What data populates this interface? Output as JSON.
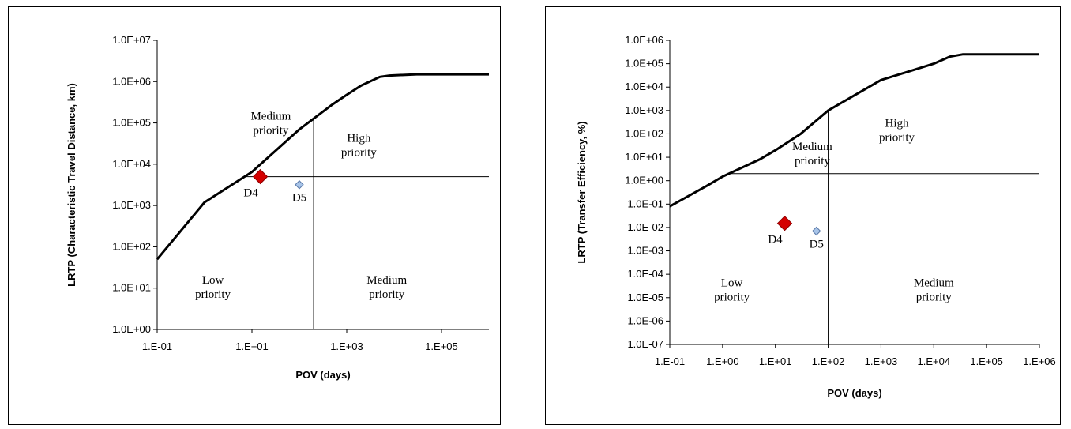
{
  "chart_data": [
    {
      "type": "scatter",
      "xlabel": "POV (days)",
      "ylabel": "LRTP (Characteristic Travel Distance, km)",
      "x_scale": "log",
      "y_scale": "log",
      "xlim": [
        0.1,
        1000000
      ],
      "ylim": [
        1,
        10000000
      ],
      "x_ticks": [
        0.1,
        10,
        1000,
        100000
      ],
      "x_tick_labels": [
        "1.E-01",
        "1.E+01",
        "1.E+03",
        "1.E+05"
      ],
      "y_ticks": [
        1,
        10,
        100,
        1000,
        10000,
        100000,
        1000000,
        10000000
      ],
      "y_tick_labels": [
        "1.0E+00",
        "1.0E+01",
        "1.0E+02",
        "1.0E+03",
        "1.0E+04",
        "1.0E+05",
        "1.0E+06",
        "1.0E+07"
      ],
      "grid": false,
      "curve": {
        "x": [
          0.1,
          1,
          10,
          100,
          500,
          1000,
          2000,
          5000,
          8000,
          30000,
          1000000
        ],
        "y": [
          50,
          1200,
          6500,
          70000,
          280000,
          480000,
          800000,
          1300000,
          1400000,
          1500000,
          1500000
        ]
      },
      "threshold_x": 200,
      "threshold_y": 5000,
      "points": [
        {
          "label": "D4",
          "x": 15,
          "y": 5000,
          "color": "#d40000",
          "size": "large",
          "label_pos": "below-left"
        },
        {
          "label": "D5",
          "x": 100,
          "y": 3200,
          "color": "#a8c4e8",
          "size": "small",
          "label_pos": "below"
        }
      ],
      "region_labels": [
        {
          "lines": [
            "Medium",
            "priority"
          ],
          "x": 25,
          "y": 120000
        },
        {
          "lines": [
            "High",
            "priority"
          ],
          "x": 1800,
          "y": 35000
        },
        {
          "lines": [
            "Low",
            "priority"
          ],
          "x": 1.5,
          "y": 13
        },
        {
          "lines": [
            "Medium",
            "priority"
          ],
          "x": 7000,
          "y": 13
        }
      ]
    },
    {
      "type": "scatter",
      "xlabel": "POV (days)",
      "ylabel": "LRTP (Transfer Efficiency, %)",
      "x_scale": "log",
      "y_scale": "log",
      "xlim": [
        0.1,
        1000000
      ],
      "ylim": [
        1e-07,
        1000000
      ],
      "x_ticks": [
        0.1,
        1,
        10,
        100,
        1000,
        10000,
        100000,
        1000000
      ],
      "x_tick_labels": [
        "1.E-01",
        "1.E+00",
        "1.E+01",
        "1.E+02",
        "1.E+03",
        "1.E+04",
        "1.E+05",
        "1.E+06"
      ],
      "y_ticks": [
        1e-07,
        1e-06,
        1e-05,
        0.0001,
        0.001,
        0.01,
        0.1,
        1,
        10,
        100,
        1000,
        10000,
        100000,
        1000000
      ],
      "y_tick_labels": [
        "1.0E-07",
        "1.0E-06",
        "1.0E-05",
        "1.0E-04",
        "1.0E-03",
        "1.0E-02",
        "1.0E-01",
        "1.0E+00",
        "1.0E+01",
        "1.0E+02",
        "1.0E+03",
        "1.0E+04",
        "1.0E+05",
        "1.0E+06"
      ],
      "grid": false,
      "curve": {
        "x": [
          0.1,
          0.5,
          1,
          5,
          10,
          30,
          100,
          1000,
          10000,
          20000,
          35000,
          1000000
        ],
        "y": [
          0.08,
          0.6,
          1.5,
          8,
          20,
          100,
          1000,
          20000,
          100000,
          200000,
          250000,
          250000
        ]
      },
      "threshold_x": 100,
      "threshold_y": 2,
      "points": [
        {
          "label": "D4",
          "x": 15,
          "y": 0.015,
          "color": "#d40000",
          "size": "large",
          "label_pos": "below-left"
        },
        {
          "label": "D5",
          "x": 60,
          "y": 0.007,
          "color": "#a8c4e8",
          "size": "small",
          "label_pos": "below"
        }
      ],
      "region_labels": [
        {
          "lines": [
            "Medium",
            "priority"
          ],
          "x": 50,
          "y": 20
        },
        {
          "lines": [
            "High",
            "priority"
          ],
          "x": 2000,
          "y": 200
        },
        {
          "lines": [
            "Low",
            "priority"
          ],
          "x": 1.5,
          "y": 3e-05
        },
        {
          "lines": [
            "Medium",
            "priority"
          ],
          "x": 10000,
          "y": 3e-05
        }
      ]
    }
  ]
}
